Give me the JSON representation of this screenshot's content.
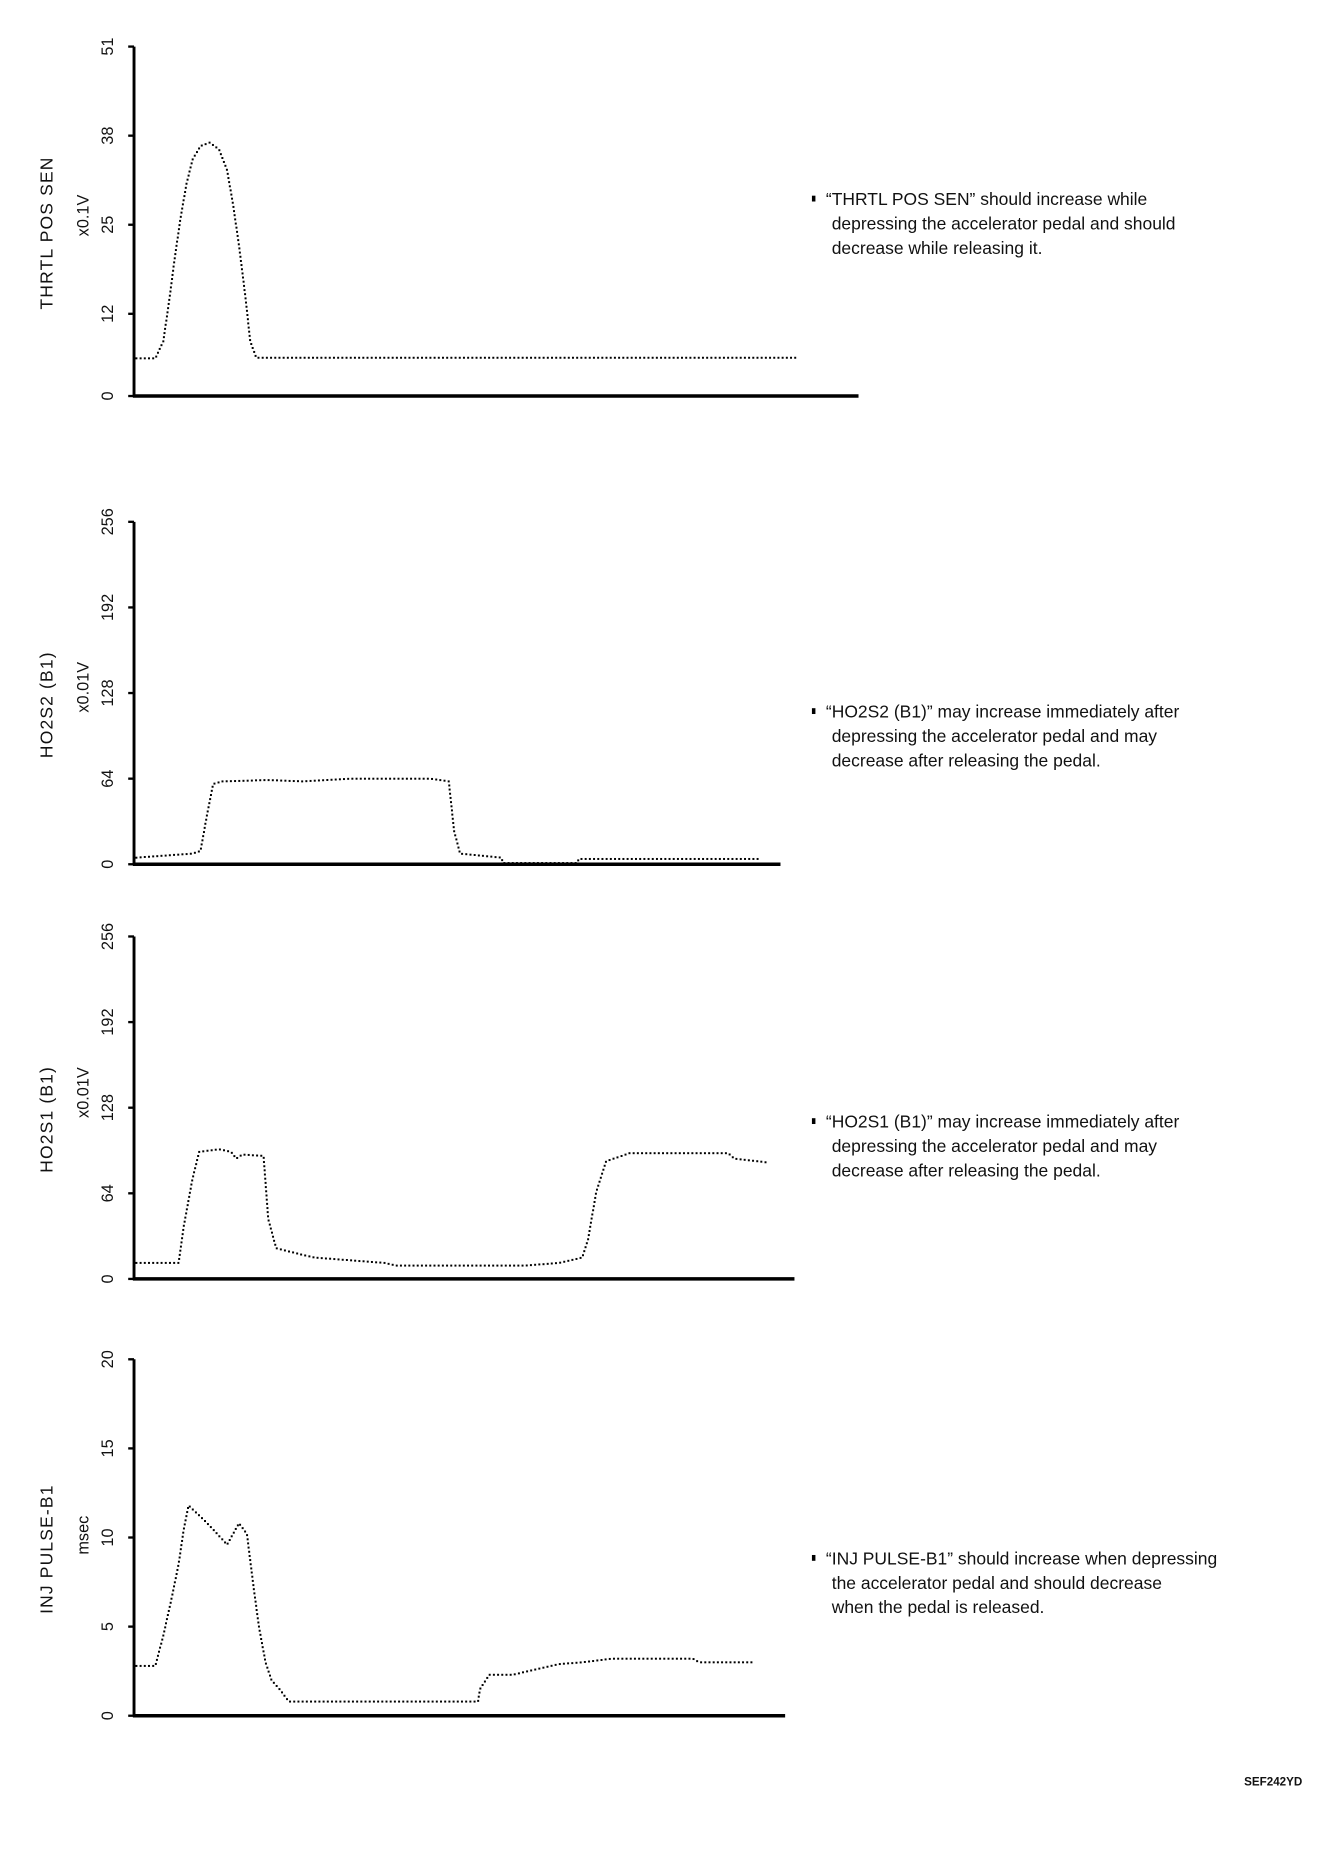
{
  "figure_code": "SEF242YD",
  "chart_data": [
    {
      "type": "line",
      "title": "THRTL POS SEN",
      "ylabel": "THRTL POS SEN",
      "unit": "x0.1V",
      "yticks": [
        "0",
        "12",
        "25",
        "38",
        "51"
      ],
      "ytick_values": [
        0,
        12,
        25,
        38,
        51
      ],
      "ylim": [
        0,
        51
      ],
      "xlim": [
        0,
        109
      ],
      "xlabel": "",
      "note": [
        "“THRTL POS SEN” should increase while",
        "depressing the accelerator pedal and should",
        "decrease while releasing it."
      ],
      "x": [
        0.35,
        3.2,
        4.4,
        5.3,
        6.1,
        7.0,
        7.9,
        8.8,
        10.0,
        11.4,
        12.8,
        14.0,
        14.9,
        15.8,
        16.7,
        17.5,
        18.4,
        99.6
      ],
      "y": [
        5.5,
        5.5,
        8,
        14,
        20,
        26,
        31,
        34.5,
        36.5,
        37,
        36,
        33,
        28,
        22,
        15,
        8,
        5.6,
        5.6
      ]
    },
    {
      "type": "line",
      "title": "HO2S2 (B1)",
      "ylabel": "HO2S2 (B1)",
      "unit": "x0.01V",
      "yticks": [
        "0",
        "64",
        "128",
        "192",
        "256"
      ],
      "ytick_values": [
        0,
        64,
        128,
        192,
        256
      ],
      "ylim": [
        0,
        256
      ],
      "xlim": [
        0,
        97.5
      ],
      "xlabel": "",
      "note": [
        "“HO2S2 (B1)” may increase immediately after",
        "depressing the accelerator pedal and may",
        "decrease after releasing the pedal."
      ],
      "x": [
        0.35,
        8.8,
        10.0,
        11.1,
        11.9,
        13.2,
        20.2,
        25.4,
        32.5,
        44.7,
        47.4,
        48.2,
        49.1,
        55.3,
        55.6,
        66.7,
        67.0,
        94.2
      ],
      "y": [
        5,
        8,
        10,
        40,
        60,
        62,
        63,
        62,
        64,
        64,
        62,
        25,
        8,
        5,
        1,
        1,
        4,
        4
      ]
    },
    {
      "type": "line",
      "title": "HO2S1 (B1)",
      "ylabel": "HO2S1 (B1)",
      "unit": "x0.01V",
      "yticks": [
        "0",
        "64",
        "128",
        "192",
        "256"
      ],
      "ytick_values": [
        0,
        64,
        128,
        192,
        256
      ],
      "ylim": [
        0,
        256
      ],
      "xlim": [
        0,
        99.5
      ],
      "xlabel": "",
      "note": [
        "“HO2S1 (B1)” may increase immediately after",
        "depressing the accelerator pedal and may",
        "decrease after releasing the pedal."
      ],
      "x": [
        0.35,
        6.7,
        7.5,
        8.8,
        9.8,
        12.8,
        14.6,
        15.4,
        16.3,
        19.5,
        20.2,
        21.4,
        25.4,
        27.2,
        32.5,
        37.7,
        39.5,
        58.8,
        64.0,
        67.5,
        68.4,
        69.6,
        71.1,
        74.6,
        89.5,
        90.4,
        95.6
      ],
      "y": [
        12,
        12,
        40,
        75,
        95,
        97,
        95,
        90,
        93,
        92,
        45,
        23,
        18,
        16,
        14,
        12,
        10,
        10,
        12,
        16,
        30,
        65,
        88,
        94,
        94,
        90,
        87
      ]
    },
    {
      "type": "line",
      "title": "INJ PULSE-B1",
      "ylabel": "INJ PULSE-B1",
      "unit": "msec",
      "yticks": [
        "0",
        "5",
        "10",
        "15",
        "20"
      ],
      "ytick_values": [
        0,
        5,
        10,
        15,
        20
      ],
      "ylim": [
        0,
        20
      ],
      "xlim": [
        0,
        98
      ],
      "xlabel": "",
      "note": [
        "“INJ PULSE-B1” should increase when depressing",
        "the accelerator pedal and should decrease",
        "when the pedal is released."
      ],
      "x": [
        0.35,
        3.2,
        4.4,
        5.6,
        6.7,
        7.5,
        8.2,
        10.5,
        12.3,
        14.0,
        15.8,
        17.0,
        17.9,
        18.8,
        19.8,
        20.7,
        21.9,
        23.3,
        51.8,
        52.1,
        53.5,
        57.0,
        60.5,
        64.0,
        67.5,
        71.9,
        84.2,
        85.1,
        93.0
      ],
      "y": [
        2.8,
        2.8,
        4.5,
        6.5,
        8.5,
        10.5,
        11.8,
        11,
        10.3,
        9.6,
        10.8,
        10.2,
        7.5,
        5,
        3,
        2,
        1.5,
        0.8,
        0.8,
        1.5,
        2.3,
        2.3,
        2.6,
        2.9,
        3,
        3.2,
        3.2,
        3,
        3
      ]
    }
  ]
}
